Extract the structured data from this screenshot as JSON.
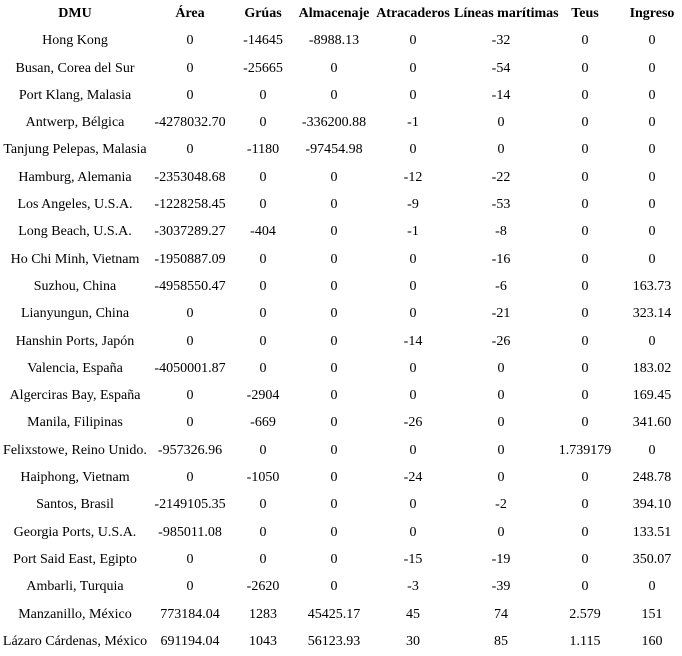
{
  "colors": {
    "text": "#000000",
    "background": "#ffffff"
  },
  "table": {
    "columns": [
      "DMU",
      "Área",
      "Grúas",
      "Almacenaje",
      "Atracaderos",
      "Líneas marítimas",
      "Teus",
      "Ingreso"
    ],
    "rows": [
      [
        "Hong Kong",
        "0",
        "-14645",
        "-8988.13",
        "0",
        "-32",
        "0",
        "0"
      ],
      [
        "Busan, Corea del Sur",
        "0",
        "-25665",
        "0",
        "0",
        "-54",
        "0",
        "0"
      ],
      [
        "Port Klang, Malasia",
        "0",
        "0",
        "0",
        "0",
        "-14",
        "0",
        "0"
      ],
      [
        "Antwerp, Bélgica",
        "-4278032.70",
        "0",
        "-336200.88",
        "-1",
        "0",
        "0",
        "0"
      ],
      [
        "Tanjung Pelepas, Malasia",
        "0",
        "-1180",
        "-97454.98",
        "0",
        "0",
        "0",
        "0"
      ],
      [
        "Hamburg, Alemania",
        "-2353048.68",
        "0",
        "0",
        "-12",
        "-22",
        "0",
        "0"
      ],
      [
        "Los Angeles, U.S.A.",
        "-1228258.45",
        "0",
        "0",
        "-9",
        "-53",
        "0",
        "0"
      ],
      [
        "Long Beach, U.S.A.",
        "-3037289.27",
        "-404",
        "0",
        "-1",
        "-8",
        "0",
        "0"
      ],
      [
        "Ho Chi Minh, Vietnam",
        "-1950887.09",
        "0",
        "0",
        "0",
        "-16",
        "0",
        "0"
      ],
      [
        "Suzhou, China",
        "-4958550.47",
        "0",
        "0",
        "0",
        "-6",
        "0",
        "163.73"
      ],
      [
        "Lianyungun, China",
        "0",
        "0",
        "0",
        "0",
        "-21",
        "0",
        "323.14"
      ],
      [
        "Hanshin Ports, Japón",
        "0",
        "0",
        "0",
        "-14",
        "-26",
        "0",
        "0"
      ],
      [
        "Valencia, España",
        "-4050001.87",
        "0",
        "0",
        "0",
        "0",
        "0",
        "183.02"
      ],
      [
        "Algerciras Bay, España",
        "0",
        "-2904",
        "0",
        "0",
        "0",
        "0",
        "169.45"
      ],
      [
        "Manila, Filipinas",
        "0",
        "-669",
        "0",
        "-26",
        "0",
        "0",
        "341.60"
      ],
      [
        "Felixstowe, Reino Unido.",
        "-957326.96",
        "0",
        "0",
        "0",
        "0",
        "1.739179",
        "0"
      ],
      [
        "Haiphong, Vietnam",
        "0",
        "-1050",
        "0",
        "-24",
        "0",
        "0",
        "248.78"
      ],
      [
        "Santos, Brasil",
        "-2149105.35",
        "0",
        "0",
        "0",
        "-2",
        "0",
        "394.10"
      ],
      [
        "Georgia Ports, U.S.A.",
        "-985011.08",
        "0",
        "0",
        "0",
        "0",
        "0",
        "133.51"
      ],
      [
        "Port Said East, Egipto",
        "0",
        "0",
        "0",
        "-15",
        "-19",
        "0",
        "350.07"
      ],
      [
        "Ambarli, Turquia",
        "0",
        "-2620",
        "0",
        "-3",
        "-39",
        "0",
        "0"
      ],
      [
        "Manzanillo, México",
        "773184.04",
        "1283",
        "45425.17",
        "45",
        "74",
        "2.579",
        "151"
      ],
      [
        "Lázaro Cárdenas, México",
        "691194.04",
        "1043",
        "56123.93",
        "30",
        "85",
        "1.115",
        "160"
      ]
    ]
  }
}
